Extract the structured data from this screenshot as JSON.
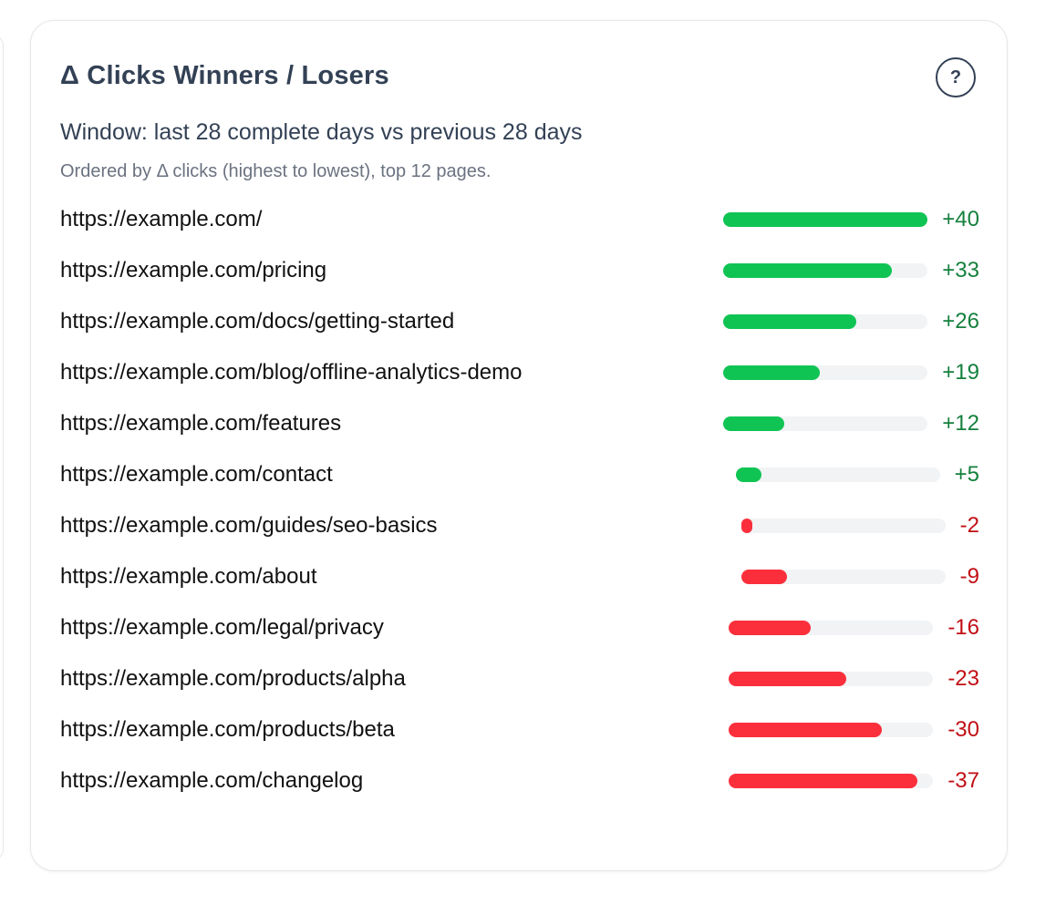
{
  "card": {
    "title": "Δ Clicks Winners / Losers",
    "help_label": "?",
    "window_text": "Window: last 28 complete days vs previous 28 days",
    "order_text": "Ordered by Δ clicks (highest to lowest), top 12 pages."
  },
  "colors": {
    "positive_bar": "#10c454",
    "positive_text": "#15803d",
    "negative_bar": "#fb2f3c",
    "negative_text": "#c00f15",
    "track": "#f1f3f5"
  },
  "rows": [
    {
      "url": "https://example.com/",
      "delta": 40,
      "delta_label": "+40"
    },
    {
      "url": "https://example.com/pricing",
      "delta": 33,
      "delta_label": "+33"
    },
    {
      "url": "https://example.com/docs/getting-started",
      "delta": 26,
      "delta_label": "+26"
    },
    {
      "url": "https://example.com/blog/offline-analytics-demo",
      "delta": 19,
      "delta_label": "+19"
    },
    {
      "url": "https://example.com/features",
      "delta": 12,
      "delta_label": "+12"
    },
    {
      "url": "https://example.com/contact",
      "delta": 5,
      "delta_label": "+5"
    },
    {
      "url": "https://example.com/guides/seo-basics",
      "delta": -2,
      "delta_label": "-2"
    },
    {
      "url": "https://example.com/about",
      "delta": -9,
      "delta_label": "-9"
    },
    {
      "url": "https://example.com/legal/privacy",
      "delta": -16,
      "delta_label": "-16"
    },
    {
      "url": "https://example.com/products/alpha",
      "delta": -23,
      "delta_label": "-23"
    },
    {
      "url": "https://example.com/products/beta",
      "delta": -30,
      "delta_label": "-30"
    },
    {
      "url": "https://example.com/changelog",
      "delta": -37,
      "delta_label": "-37"
    }
  ]
}
